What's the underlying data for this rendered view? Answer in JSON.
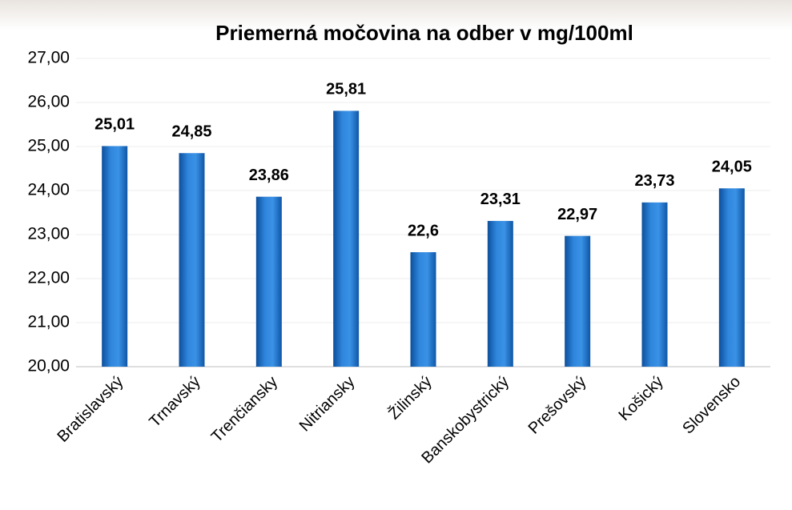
{
  "chart_data": {
    "type": "bar",
    "title": "Priemerná močovina na odber v mg/100ml",
    "categories": [
      "Bratislavský",
      "Trnavský",
      "Trenčiansky",
      "Nitriansky",
      "Žilinský",
      "Banskobystrický",
      "Prešovský",
      "Košický",
      "Slovensko"
    ],
    "values": [
      25.01,
      24.85,
      23.86,
      25.81,
      22.6,
      23.31,
      22.97,
      23.73,
      24.05
    ],
    "value_labels": [
      "25,01",
      "24,85",
      "23,86",
      "25,81",
      "22,6",
      "23,31",
      "22,97",
      "23,73",
      "24,05"
    ],
    "color": "#1f6fc4",
    "ylim": [
      20,
      27
    ],
    "yticks": [
      {
        "value": 20,
        "label": "20,00"
      },
      {
        "value": 21,
        "label": "21,00"
      },
      {
        "value": 22,
        "label": "22,00"
      },
      {
        "value": 23,
        "label": "23,00"
      },
      {
        "value": 24,
        "label": "24,00"
      },
      {
        "value": 25,
        "label": "25,00"
      },
      {
        "value": 26,
        "label": "26,00"
      },
      {
        "value": 27,
        "label": "27,00"
      }
    ],
    "grid": true
  }
}
